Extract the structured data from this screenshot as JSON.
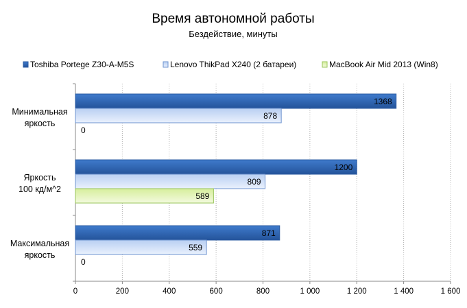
{
  "chart_data": {
    "type": "bar",
    "orientation": "horizontal",
    "title": "Время автономной работы",
    "subtitle": "Бездействие, минуты",
    "categories": [
      "Минимальная яркость",
      "Яркость 100 кд/м^2",
      "Максимальная яркость"
    ],
    "category_lines": [
      [
        "Минимальная",
        "яркость"
      ],
      [
        "Яркость",
        "100 кд/м^2"
      ],
      [
        "Максимальная",
        "яркость"
      ]
    ],
    "series": [
      {
        "name": "Toshiba Portege Z30-A-M5S",
        "values": [
          1368,
          1200,
          871
        ],
        "color": "#2f64ad"
      },
      {
        "name": "Lenovo ThikPad  X240 (2 батареи)",
        "values": [
          878,
          809,
          559
        ],
        "color": "#c6d9f7"
      },
      {
        "name": "MacBook Air Mid 2013 (Win8)",
        "values": [
          0,
          589,
          0
        ],
        "color": "#e3f3b8"
      }
    ],
    "xlim": [
      0,
      1600
    ],
    "xticks": [
      0,
      200,
      400,
      600,
      800,
      1000,
      1200,
      1400,
      1600
    ],
    "xtick_labels": [
      "0",
      "200",
      "400",
      "600",
      "800",
      "1 000",
      "1 200",
      "1 400",
      "1 600"
    ],
    "grid": true,
    "legend_position": "top"
  }
}
